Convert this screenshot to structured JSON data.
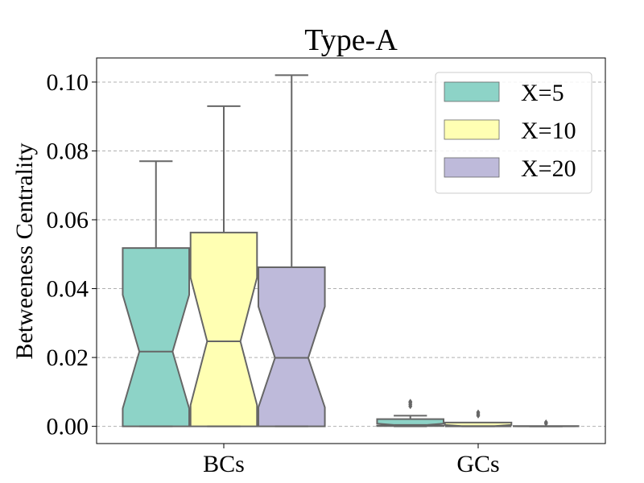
{
  "chart_data": {
    "type": "boxplot",
    "title": "Type-A",
    "xlabel": "",
    "ylabel": "Betweeness Centrality",
    "ylim": [
      -0.005,
      0.107
    ],
    "yticks": [
      0.0,
      0.02,
      0.04,
      0.06,
      0.08,
      0.1
    ],
    "ytick_labels": [
      "0.00",
      "0.02",
      "0.04",
      "0.06",
      "0.08",
      "0.10"
    ],
    "categories": [
      "BCs",
      "GCs"
    ],
    "grid": true,
    "notched": true,
    "legend_position": "top-right",
    "series": [
      {
        "name": "X=5",
        "color": "#8dd3c7",
        "boxes": [
          {
            "whisker_low": 0.0,
            "q1": 0.0,
            "median": 0.0217,
            "q3": 0.0518,
            "whisker_high": 0.077,
            "notch_low": 0.0052,
            "notch_high": 0.0382,
            "outliers": []
          },
          {
            "whisker_low": 0.0,
            "q1": 0.0001,
            "median": 0.0004,
            "q3": 0.0021,
            "whisker_high": 0.0031,
            "notch_low": 0.0002,
            "notch_high": 0.0008,
            "outliers": [
              0.0058,
              0.0063,
              0.0068,
              0.0072
            ]
          }
        ]
      },
      {
        "name": "X=10",
        "color": "#ffffb3",
        "boxes": [
          {
            "whisker_low": 0.0,
            "q1": 0.0,
            "median": 0.0247,
            "q3": 0.0563,
            "whisker_high": 0.093,
            "notch_low": 0.0062,
            "notch_high": 0.0432,
            "outliers": []
          },
          {
            "whisker_low": 0.0,
            "q1": 0.0,
            "median": 0.0001,
            "q3": 0.0011,
            "whisker_high": 0.0011,
            "notch_low": 0.0,
            "notch_high": 0.0004,
            "outliers": [
              0.0031,
              0.0036,
              0.0041
            ]
          }
        ]
      },
      {
        "name": "X=20",
        "color": "#bebada",
        "boxes": [
          {
            "whisker_low": 0.0,
            "q1": 0.0,
            "median": 0.0199,
            "q3": 0.0462,
            "whisker_high": 0.102,
            "notch_low": 0.0055,
            "notch_high": 0.0348,
            "outliers": []
          },
          {
            "whisker_low": 0.0,
            "q1": 0.0,
            "median": 0.0,
            "q3": 0.0001,
            "whisker_high": 0.0001,
            "notch_low": 0.0,
            "notch_high": 0.0001,
            "outliers": [
              0.0008,
              0.0012
            ]
          }
        ]
      }
    ]
  }
}
